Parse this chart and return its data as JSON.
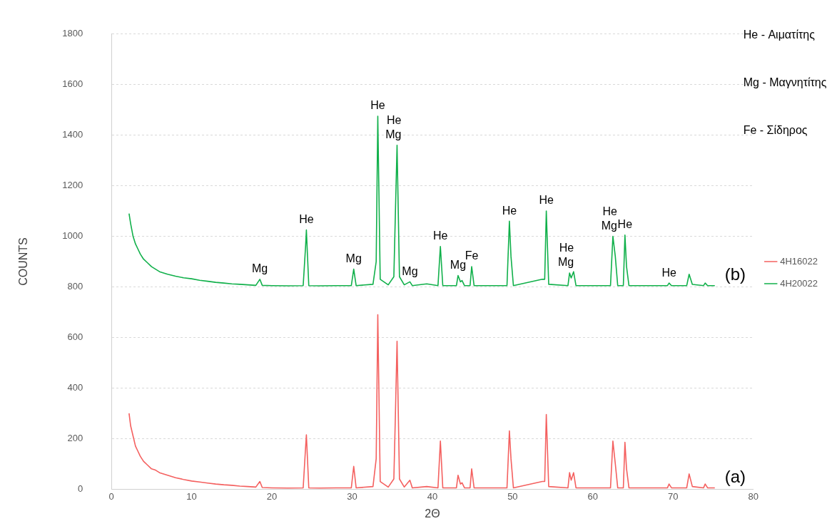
{
  "chart_data": {
    "type": "line",
    "xlabel": "2Θ",
    "ylabel": "COUNTS",
    "xlim": [
      0,
      80
    ],
    "xticks": [
      0,
      10,
      20,
      30,
      40,
      50,
      60,
      70,
      80
    ],
    "ylim": [
      0,
      1800
    ],
    "yticks": [
      0,
      200,
      400,
      600,
      800,
      1000,
      1200,
      1400,
      1600,
      1800
    ],
    "grid": "y",
    "legend": "right",
    "marker": "none",
    "line_style": "solid",
    "series": [
      {
        "name": "4H16022",
        "color": "#f4605f",
        "x": [
          2.2,
          2.4,
          2.7,
          3.0,
          3.3,
          3.6,
          4.0,
          4.5,
          5,
          5.5,
          6,
          7,
          8,
          9,
          10,
          11,
          12,
          13,
          14,
          15,
          16,
          17,
          18,
          18.5,
          18.8,
          20,
          22,
          23.9,
          24.2,
          24.3,
          24.6,
          26,
          28,
          29.9,
          30.2,
          30.5,
          32.6,
          33.0,
          33.2,
          33.5,
          34.5,
          35.2,
          35.4,
          35.6,
          35.9,
          36.5,
          37.2,
          37.5,
          39.3,
          40.7,
          41.0,
          41.3,
          43.0,
          43.2,
          43.5,
          43.7,
          44.0,
          44.7,
          44.9,
          45.2,
          49.3,
          49.6,
          49.8,
          50.1,
          53.7,
          54.0,
          54.2,
          54.5,
          56.9,
          57.1,
          57.3,
          57.6,
          57.9,
          62.2,
          62.5,
          62.8,
          63.1,
          63.8,
          64.0,
          64.2,
          64.5,
          69.3,
          69.5,
          69.8,
          71.7,
          72.0,
          72.4,
          73.8,
          74.0,
          74.3,
          75.2
        ],
        "values": [
          300,
          250,
          210,
          170,
          150,
          130,
          110,
          95,
          80,
          75,
          65,
          55,
          45,
          38,
          32,
          28,
          24,
          20,
          17,
          15,
          12,
          10,
          8,
          30,
          6,
          5,
          4,
          5,
          165,
          215,
          5,
          4,
          5,
          5,
          90,
          5,
          10,
          120,
          690,
          30,
          8,
          40,
          300,
          585,
          40,
          8,
          35,
          5,
          10,
          5,
          190,
          5,
          5,
          55,
          20,
          25,
          5,
          5,
          80,
          5,
          5,
          230,
          120,
          5,
          30,
          30,
          295,
          10,
          5,
          65,
          35,
          65,
          5,
          5,
          190,
          100,
          5,
          5,
          185,
          80,
          5,
          5,
          20,
          5,
          5,
          60,
          10,
          5,
          20,
          5,
          5
        ]
      },
      {
        "name": "4H20022",
        "color": "#10b04a",
        "x": [
          2.2,
          2.4,
          2.7,
          3.0,
          3.3,
          3.6,
          4.0,
          4.5,
          5,
          5.5,
          6,
          7,
          8,
          9,
          10,
          11,
          12,
          13,
          14,
          15,
          16,
          17,
          18,
          18.5,
          18.8,
          20,
          22,
          23.9,
          24.2,
          24.3,
          24.6,
          26,
          28,
          29.9,
          30.2,
          30.5,
          32.6,
          33.0,
          33.2,
          33.5,
          34.5,
          35.2,
          35.4,
          35.6,
          35.9,
          36.5,
          37.2,
          37.5,
          39.3,
          40.7,
          41.0,
          41.3,
          43.0,
          43.2,
          43.5,
          43.7,
          44.0,
          44.7,
          44.9,
          45.2,
          49.3,
          49.6,
          49.8,
          50.1,
          53.7,
          54.0,
          54.2,
          54.5,
          56.9,
          57.1,
          57.3,
          57.6,
          57.9,
          62.2,
          62.5,
          62.8,
          63.1,
          63.8,
          64.0,
          64.2,
          64.5,
          69.3,
          69.5,
          69.8,
          71.7,
          72.0,
          72.4,
          73.8,
          74.0,
          74.3,
          75.2
        ],
        "values": [
          1090,
          1050,
          1000,
          970,
          950,
          930,
          910,
          895,
          880,
          870,
          860,
          850,
          842,
          836,
          832,
          826,
          822,
          818,
          815,
          812,
          810,
          808,
          806,
          830,
          806,
          805,
          804,
          805,
          960,
          1025,
          805,
          804,
          805,
          805,
          870,
          805,
          810,
          900,
          1475,
          830,
          808,
          840,
          1100,
          1360,
          840,
          808,
          820,
          805,
          812,
          805,
          960,
          805,
          805,
          845,
          820,
          825,
          805,
          805,
          880,
          805,
          805,
          1060,
          920,
          805,
          830,
          830,
          1100,
          810,
          805,
          855,
          835,
          860,
          805,
          805,
          1000,
          920,
          805,
          805,
          1005,
          880,
          805,
          805,
          815,
          805,
          805,
          850,
          810,
          805,
          815,
          805,
          805
        ]
      }
    ],
    "annotations": [
      "He - Αιματίτης",
      "Mg - Μαγνητίτης",
      "Fe - Σίδηρος",
      {
        "text": "Mg",
        "x": 18.5,
        "y": 830
      },
      {
        "text": "He",
        "x": 24.3,
        "y": 1025
      },
      {
        "text": "Mg",
        "x": 30.2,
        "y": 870
      },
      {
        "text": "He",
        "x": 33.2,
        "y": 1475
      },
      {
        "text": "Mg",
        "x": 35.6,
        "y": 1360
      },
      {
        "text": "He",
        "x": 35.6,
        "y": 1360
      },
      {
        "text": "Mg",
        "x": 37.2,
        "y": 820
      },
      {
        "text": "He",
        "x": 41.0,
        "y": 960
      },
      {
        "text": "Mg",
        "x": 43.2,
        "y": 845
      },
      {
        "text": "Fe",
        "x": 44.9,
        "y": 880
      },
      {
        "text": "He",
        "x": 49.6,
        "y": 1060
      },
      {
        "text": "He",
        "x": 54.2,
        "y": 1100
      },
      {
        "text": "Mg",
        "x": 57.1,
        "y": 855
      },
      {
        "text": "He",
        "x": 57.1,
        "y": 855
      },
      {
        "text": "Mg",
        "x": 62.5,
        "y": 1000
      },
      {
        "text": "He",
        "x": 62.5,
        "y": 1000
      },
      {
        "text": "He",
        "x": 64.0,
        "y": 1005
      },
      {
        "text": "He",
        "x": 69.5,
        "y": 815
      },
      {
        "text": "(b)",
        "x": 75.2,
        "y": 805
      },
      {
        "text": "(a)",
        "x": 75.2,
        "y": 5
      }
    ]
  }
}
